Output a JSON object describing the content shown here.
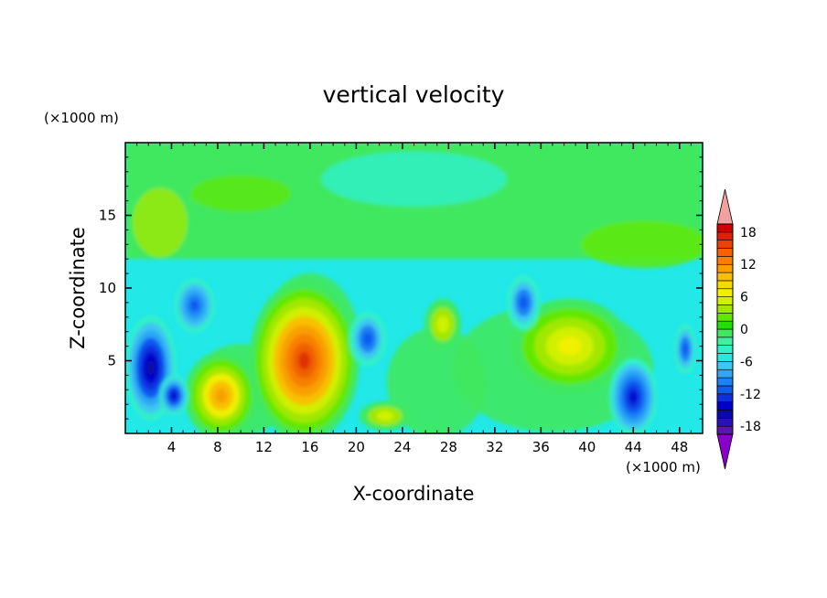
{
  "chart_data": {
    "type": "heatmap",
    "title": "vertical velocity",
    "xlabel": "X-coordinate",
    "ylabel": "Z-coordinate",
    "x_unit": "(×1000 m)",
    "y_unit": "(×1000 m)",
    "xlim": [
      0,
      50
    ],
    "ylim": [
      0,
      20
    ],
    "x_ticks": [
      4,
      8,
      12,
      16,
      20,
      24,
      28,
      32,
      36,
      40,
      44,
      48
    ],
    "y_ticks": [
      5,
      10,
      15
    ],
    "colorbar": {
      "levels": [
        -21,
        -19.5,
        -18,
        -16.5,
        -15,
        -13.5,
        -12,
        -10.5,
        -9,
        -7.5,
        -6,
        -4.5,
        -3,
        -1.5,
        0,
        1.5,
        3,
        4.5,
        6,
        7.5,
        9,
        10.5,
        12,
        13.5,
        15,
        16.5,
        18,
        19.5,
        21
      ],
      "tick_labels": [
        "18",
        "12",
        "6",
        "0",
        "-6",
        "-12",
        "-18"
      ],
      "tick_values": [
        18,
        12,
        6,
        0,
        -6,
        -12,
        -18
      ],
      "colors": [
        "#8b00c8",
        "#5a14b4",
        "#2a10b8",
        "#0a0aa6",
        "#0000c8",
        "#0a2ee0",
        "#0f5af0",
        "#1c82f5",
        "#2ca8f5",
        "#3cc8f0",
        "#22e8e8",
        "#30f0c8",
        "#40f0a0",
        "#40e860",
        "#20e000",
        "#60e800",
        "#a0e800",
        "#d0f000",
        "#f0f000",
        "#f8d800",
        "#f8c000",
        "#f8a000",
        "#f88000",
        "#f86000",
        "#f04000",
        "#e02000",
        "#d00000",
        "#c00000",
        "#f4a0a0"
      ],
      "extend": "both"
    },
    "features": [
      {
        "sign": "up",
        "x": 15.5,
        "z": 5.0,
        "peak": 14
      },
      {
        "sign": "up",
        "x": 8.3,
        "z": 2.6,
        "peak": 9
      },
      {
        "sign": "up",
        "x": 38.5,
        "z": 6.0,
        "peak": 7
      },
      {
        "sign": "up",
        "x": 27.5,
        "z": 7.5,
        "peak": 4
      },
      {
        "sign": "up",
        "x": 22.5,
        "z": 1.2,
        "peak": 4
      },
      {
        "sign": "down",
        "x": 2.2,
        "z": 4.5,
        "peak": -11
      },
      {
        "sign": "down",
        "x": 6.0,
        "z": 8.8,
        "peak": -7
      },
      {
        "sign": "down",
        "x": 4.2,
        "z": 2.6,
        "peak": -9
      },
      {
        "sign": "down",
        "x": 44.0,
        "z": 2.5,
        "peak": -10
      },
      {
        "sign": "down",
        "x": 48.5,
        "z": 5.8,
        "peak": -6
      },
      {
        "sign": "down",
        "x": 21.0,
        "z": 6.5,
        "peak": -6
      },
      {
        "sign": "down",
        "x": 34.5,
        "z": 9.0,
        "peak": -6
      }
    ]
  }
}
